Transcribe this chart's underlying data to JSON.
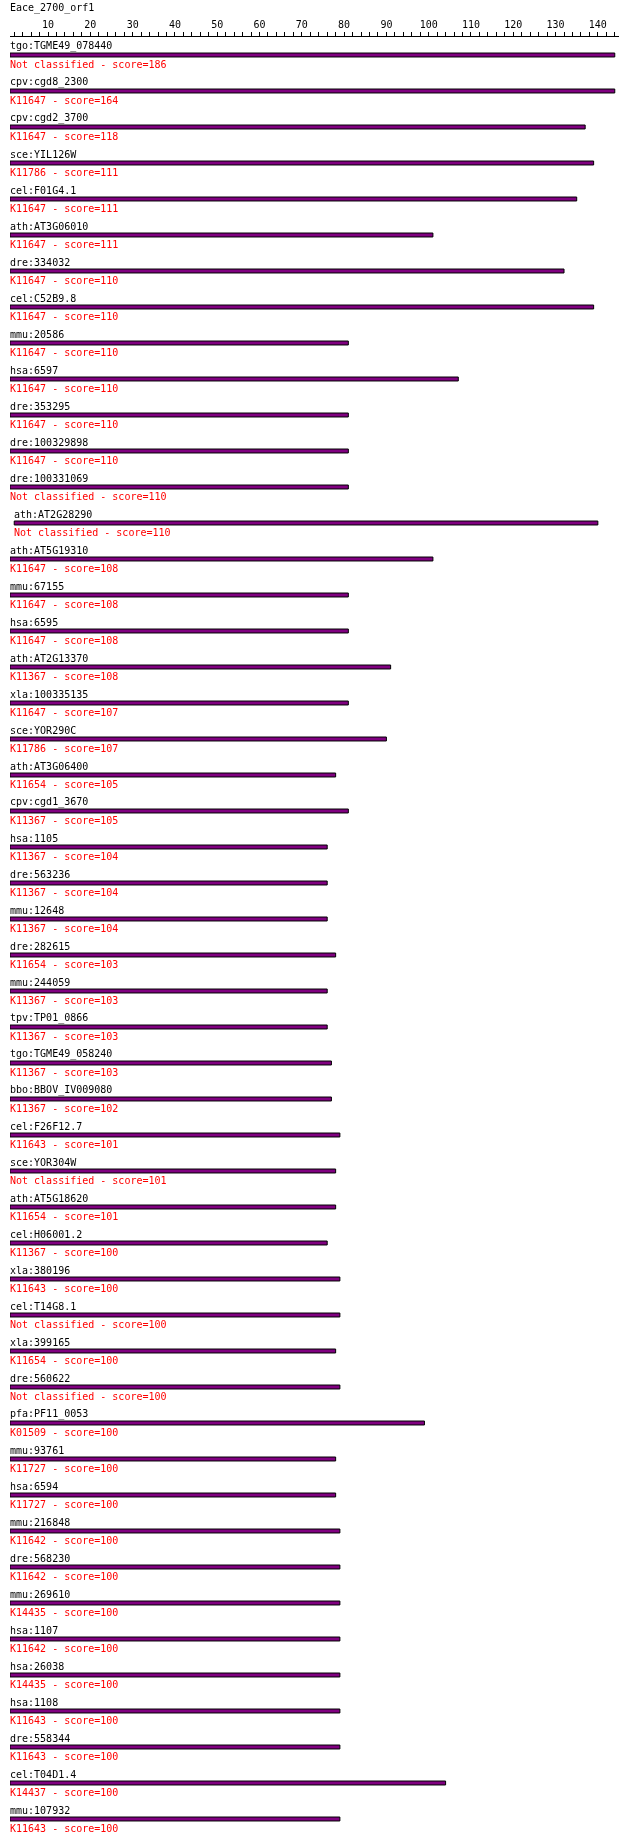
{
  "chart_data": {
    "type": "bar",
    "orientation": "horizontal",
    "title": "Eace_2700_orf1",
    "categories": [
      "tgo:TGME49_078440",
      "cpv:cgd8_2300",
      "cpv:cgd2_3700",
      "sce:YIL126W",
      "cel:F01G4.1",
      "ath:AT3G06010",
      "dre:334032",
      "cel:C52B9.8",
      "mmu:20586",
      "hsa:6597",
      "dre:353295",
      "dre:100329898",
      "dre:100331069",
      "ath:AT2G28290",
      "ath:AT5G19310",
      "mmu:67155",
      "hsa:6595",
      "ath:AT2G13370",
      "xla:100335135",
      "sce:YOR290C",
      "ath:AT3G06400",
      "cpv:cgd1_3670",
      "hsa:1105",
      "dre:563236",
      "mmu:12648",
      "dre:282615",
      "mmu:244059",
      "tpv:TP01_0866",
      "tgo:TGME49_058240",
      "bbo:BBOV_IV009080",
      "cel:F26F12.7",
      "sce:YOR304W",
      "ath:AT5G18620",
      "cel:H06001.2",
      "xla:380196",
      "cel:T14G8.1",
      "xla:399165",
      "dre:560622",
      "pfa:PF11_0053",
      "mmu:93761",
      "hsa:6594",
      "mmu:216848",
      "dre:568230",
      "mmu:269610",
      "hsa:1107",
      "hsa:26038",
      "hsa:1108",
      "dre:558344",
      "cel:T04D1.4",
      "mmu:107932"
    ],
    "base": [
      1,
      1,
      1,
      1,
      1,
      1,
      1,
      1,
      1,
      1,
      1,
      1,
      1,
      2,
      1,
      1,
      1,
      1,
      1,
      1,
      1,
      1,
      1,
      1,
      1,
      1,
      1,
      1,
      1,
      1,
      1,
      1,
      1,
      1,
      1,
      1,
      1,
      1,
      1,
      1,
      1,
      1,
      1,
      1,
      1,
      1,
      1,
      1,
      1,
      1
    ],
    "values": [
      143,
      143,
      136,
      138,
      134,
      100,
      131,
      138,
      80,
      106,
      80,
      80,
      80,
      138,
      100,
      80,
      80,
      90,
      80,
      89,
      77,
      80,
      75,
      75,
      75,
      77,
      75,
      75,
      76,
      76,
      78,
      77,
      77,
      75,
      78,
      78,
      77,
      78,
      98,
      77,
      77,
      78,
      78,
      78,
      78,
      78,
      78,
      78,
      103,
      78
    ],
    "color": "#800080",
    "xlim": [
      1,
      145
    ],
    "xticks": [
      {
        "value": 2,
        "label": null
      },
      {
        "value": 4,
        "label": null
      },
      {
        "value": 6,
        "label": null
      },
      {
        "value": 8,
        "label": null
      },
      10,
      {
        "value": 12,
        "label": null
      },
      {
        "value": 14,
        "label": null
      },
      {
        "value": 16,
        "label": null
      },
      {
        "value": 18,
        "label": null
      },
      20,
      {
        "value": 22,
        "label": null
      },
      {
        "value": 24,
        "label": null
      },
      {
        "value": 26,
        "label": null
      },
      {
        "value": 28,
        "label": null
      },
      30,
      {
        "value": 32,
        "label": null
      },
      {
        "value": 34,
        "label": null
      },
      {
        "value": 36,
        "label": null
      },
      {
        "value": 38,
        "label": null
      },
      40,
      {
        "value": 42,
        "label": null
      },
      {
        "value": 44,
        "label": null
      },
      {
        "value": 46,
        "label": null
      },
      {
        "value": 48,
        "label": null
      },
      50,
      {
        "value": 52,
        "label": null
      },
      {
        "value": 54,
        "label": null
      },
      {
        "value": 56,
        "label": null
      },
      {
        "value": 58,
        "label": null
      },
      60,
      {
        "value": 62,
        "label": null
      },
      {
        "value": 64,
        "label": null
      },
      {
        "value": 66,
        "label": null
      },
      {
        "value": 68,
        "label": null
      },
      70,
      {
        "value": 72,
        "label": null
      },
      {
        "value": 74,
        "label": null
      },
      {
        "value": 76,
        "label": null
      },
      {
        "value": 78,
        "label": null
      },
      80,
      {
        "value": 82,
        "label": null
      },
      {
        "value": 84,
        "label": null
      },
      {
        "value": 86,
        "label": null
      },
      {
        "value": 88,
        "label": null
      },
      90,
      {
        "value": 92,
        "label": null
      },
      {
        "value": 94,
        "label": null
      },
      {
        "value": 96,
        "label": null
      },
      {
        "value": 98,
        "label": null
      },
      100,
      {
        "value": 102,
        "label": null
      },
      {
        "value": 104,
        "label": null
      },
      {
        "value": 106,
        "label": null
      },
      {
        "value": 108,
        "label": null
      },
      110,
      {
        "value": 112,
        "label": null
      },
      {
        "value": 114,
        "label": null
      },
      {
        "value": 116,
        "label": null
      },
      {
        "value": 118,
        "label": null
      },
      120,
      {
        "value": 122,
        "label": null
      },
      {
        "value": 124,
        "label": null
      },
      {
        "value": 126,
        "label": null
      },
      {
        "value": 128,
        "label": null
      },
      130,
      {
        "value": 132,
        "label": null
      },
      {
        "value": 134,
        "label": null
      },
      {
        "value": 136,
        "label": null
      },
      {
        "value": 138,
        "label": null
      },
      140,
      {
        "value": 142,
        "label": null
      },
      {
        "value": 144,
        "label": null
      }
    ],
    "annotations": [
      "Not classified - score=186",
      "K11647 - score=164",
      "K11647 - score=118",
      "K11786 - score=111",
      "K11647 - score=111",
      "K11647 - score=111",
      "K11647 - score=110",
      "K11647 - score=110",
      "K11647 - score=110",
      "K11647 - score=110",
      "K11647 - score=110",
      "K11647 - score=110",
      "Not classified - score=110",
      "Not classified - score=110",
      "K11647 - score=108",
      "K11647 - score=108",
      "K11647 - score=108",
      "K11367 - score=108",
      "K11647 - score=107",
      "K11786 - score=107",
      "K11654 - score=105",
      "K11367 - score=105",
      "K11367 - score=104",
      "K11367 - score=104",
      "K11367 - score=104",
      "K11654 - score=103",
      "K11367 - score=103",
      "K11367 - score=103",
      "K11367 - score=103",
      "K11367 - score=102",
      "K11643 - score=101",
      "Not classified - score=101",
      "K11654 - score=101",
      "K11367 - score=100",
      "K11643 - score=100",
      "Not classified - score=100",
      "K11654 - score=100",
      "Not classified - score=100",
      "K01509 - score=100",
      "K11727 - score=100",
      "K11727 - score=100",
      "K11642 - score=100",
      "K11642 - score=100",
      "K14435 - score=100",
      "K11642 - score=100",
      "K14435 - score=100",
      "K11643 - score=100",
      "K11643 - score=100",
      "K14437 - score=100",
      "K11643 - score=100"
    ]
  }
}
